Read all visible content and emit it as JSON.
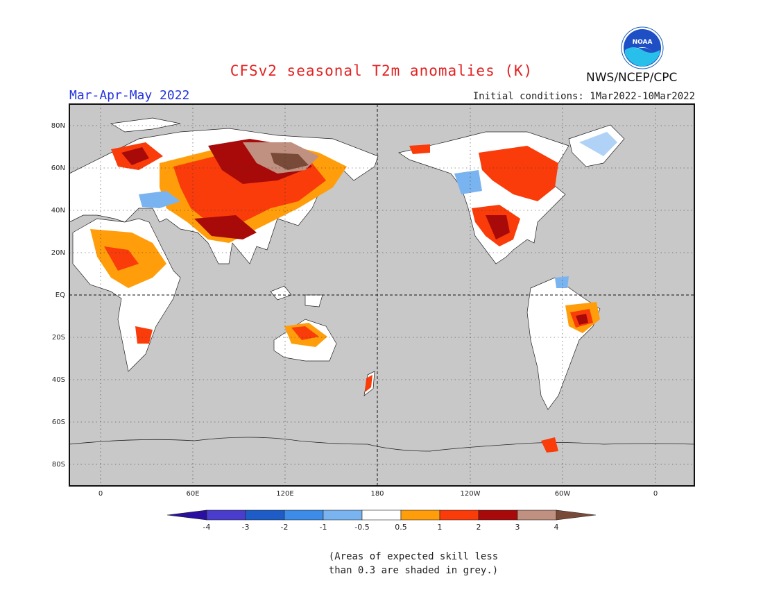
{
  "header": {
    "title": "CFSv2 seasonal T2m anomalies (K)",
    "season": "Mar-Apr-May 2022",
    "initial_conditions": "Initial conditions: 1Mar2022-10Mar2022",
    "agency": "NWS/NCEP/CPC",
    "logo_text": "NOAA"
  },
  "colors": {
    "title": "#e32222",
    "season": "#2233dd",
    "ocean_grey": "#c8c8c8",
    "land_white": "#ffffff"
  },
  "map": {
    "projection": "equirectangular",
    "center_longitude": 180,
    "lat_labels": [
      "80N",
      "60N",
      "40N",
      "20N",
      "EQ",
      "20S",
      "40S",
      "60S",
      "80S"
    ],
    "lon_labels": [
      "0",
      "60E",
      "120E",
      "180",
      "120W",
      "60W",
      "0"
    ]
  },
  "legend": {
    "ticks": [
      "-4",
      "-3",
      "-2",
      "-1",
      "-0.5",
      "0.5",
      "1",
      "2",
      "3",
      "4"
    ],
    "bins": [
      {
        "color": "#2b0fa0"
      },
      {
        "color": "#4a3ccc"
      },
      {
        "color": "#1e5dc8"
      },
      {
        "color": "#3d8ce8"
      },
      {
        "color": "#7ab4f0"
      },
      {
        "color": "#ffffff"
      },
      {
        "color": "#ff9e0a"
      },
      {
        "color": "#fa3c0a"
      },
      {
        "color": "#a80a0a"
      },
      {
        "color": "#c09080"
      },
      {
        "color": "#7a4a38"
      }
    ]
  },
  "note": [
    "(Areas of expected skill less",
    "than 0.3 are shaded in grey.)"
  ]
}
